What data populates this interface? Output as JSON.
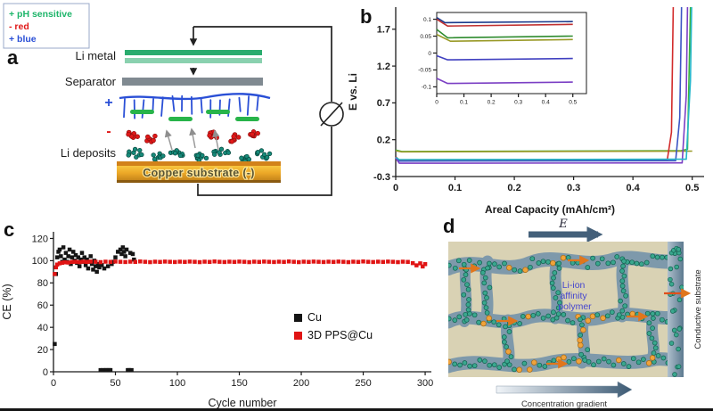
{
  "panels": {
    "a": {
      "label": "a",
      "legend": [
        {
          "text": "+ pH sensitive",
          "color": "#1db56a"
        },
        {
          "text": "- red",
          "color": "#e01818"
        },
        {
          "text": "+ blue",
          "color": "#2a4fd6"
        }
      ],
      "labels": {
        "li_metal": "Li metal",
        "separator": "Separator",
        "plus_sign": "+",
        "minus_sign": "-",
        "li_deposits": "Li deposits",
        "copper": "Copper substrate (-)"
      }
    },
    "b": {
      "label": "b"
    },
    "c": {
      "label": "c"
    },
    "d": {
      "label": "d",
      "e_label": "E",
      "polymer_lines": [
        "Li-ion",
        "affinity",
        "polymer"
      ],
      "substrate": "Conductive substrate",
      "gradient": "Concentration gradient"
    }
  },
  "chart_data": [
    {
      "type": "line",
      "title": "",
      "xlabel": "Areal Capacity (mAh/cm²)",
      "ylabel": "E vs. Li",
      "xlim": [
        0,
        0.52
      ],
      "ylim": [
        -0.3,
        2.0
      ],
      "xticks": [
        0,
        0.1,
        0.2,
        0.3,
        0.4,
        0.5
      ],
      "yticks": [
        -0.3,
        0.2,
        0.7,
        1.2,
        1.7
      ],
      "frame": "lb",
      "series": [
        {
          "name": "green",
          "color": "#3cb53c",
          "points": [
            [
              0,
              0.06
            ],
            [
              0.01,
              0.04
            ],
            [
              0.48,
              0.05
            ],
            [
              0.492,
              0.07
            ],
            [
              0.497,
              2.0
            ]
          ]
        },
        {
          "name": "olive",
          "color": "#9a9a28",
          "points": [
            [
              0,
              0.05
            ],
            [
              0.01,
              0.035
            ],
            [
              0.5,
              0.045
            ]
          ]
        },
        {
          "name": "red",
          "color": "#d22b2b",
          "points": [
            [
              0,
              -0.03
            ],
            [
              0.006,
              -0.08
            ],
            [
              0.458,
              -0.075
            ],
            [
              0.465,
              0.3
            ],
            [
              0.468,
              2.0
            ]
          ]
        },
        {
          "name": "blue",
          "color": "#3b54c4",
          "points": [
            [
              0,
              -0.04
            ],
            [
              0.006,
              -0.09
            ],
            [
              0.472,
              -0.085
            ],
            [
              0.479,
              0.5
            ],
            [
              0.482,
              2.0
            ]
          ]
        },
        {
          "name": "purple",
          "color": "#7b3fc4",
          "points": [
            [
              0,
              -0.05
            ],
            [
              0.006,
              -0.12
            ],
            [
              0.483,
              -0.115
            ],
            [
              0.49,
              0.8
            ],
            [
              0.492,
              2.0
            ]
          ]
        },
        {
          "name": "cyan",
          "color": "#25b7c8",
          "points": [
            [
              0,
              -0.04
            ],
            [
              0.006,
              -0.07
            ],
            [
              0.49,
              -0.065
            ],
            [
              0.497,
              1.0
            ],
            [
              0.499,
              2.0
            ]
          ]
        }
      ]
    },
    {
      "type": "line",
      "title": "",
      "xlabel": "",
      "ylabel": "",
      "xlim": [
        0,
        0.55
      ],
      "ylim": [
        -0.12,
        0.12
      ],
      "xticks": [
        0,
        0.1,
        0.2,
        0.3,
        0.4,
        0.5
      ],
      "yticks": [
        -0.1,
        -0.05,
        0,
        0.05,
        0.1
      ],
      "frame": "box",
      "series": [
        {
          "color": "#1a3a8c",
          "points": [
            [
              0,
              0.105
            ],
            [
              0.03,
              0.09
            ],
            [
              0.5,
              0.093
            ]
          ]
        },
        {
          "color": "#c03030",
          "points": [
            [
              0,
              0.1
            ],
            [
              0.04,
              0.08
            ],
            [
              0.5,
              0.085
            ]
          ]
        },
        {
          "color": "#2e8b2e",
          "points": [
            [
              0,
              0.07
            ],
            [
              0.04,
              0.045
            ],
            [
              0.5,
              0.05
            ]
          ]
        },
        {
          "color": "#9a9a28",
          "points": [
            [
              0,
              0.055
            ],
            [
              0.05,
              0.035
            ],
            [
              0.5,
              0.04
            ]
          ]
        },
        {
          "color": "#4040c0",
          "points": [
            [
              0,
              -0.008
            ],
            [
              0.04,
              -0.02
            ],
            [
              0.5,
              -0.016
            ]
          ]
        },
        {
          "color": "#7b3fc4",
          "points": [
            [
              0,
              -0.075
            ],
            [
              0.04,
              -0.09
            ],
            [
              0.5,
              -0.086
            ]
          ]
        }
      ]
    },
    {
      "type": "scatter",
      "title": "",
      "xlabel": "Cycle number",
      "ylabel": "CE (%)",
      "xlim": [
        0,
        305
      ],
      "ylim": [
        0,
        126
      ],
      "xticks": [
        0,
        50,
        100,
        150,
        200,
        250,
        300
      ],
      "yticks": [
        0,
        20,
        40,
        60,
        80,
        100,
        120
      ],
      "frame": "lb",
      "marker_size": 4.5,
      "legend": [
        {
          "label": "Cu",
          "color": "#151515"
        },
        {
          "label": "3D PPS@Cu",
          "color": "#e01414"
        }
      ],
      "series": [
        {
          "name": "Cu",
          "color": "#151515",
          "points": [
            [
              1,
              25
            ],
            [
              2,
              88
            ],
            [
              3,
              103
            ],
            [
              4,
              108
            ],
            [
              5,
              110
            ],
            [
              6,
              104
            ],
            [
              7,
              99
            ],
            [
              8,
              112
            ],
            [
              9,
              101
            ],
            [
              10,
              107
            ],
            [
              11,
              99
            ],
            [
              12,
              104
            ],
            [
              13,
              110
            ],
            [
              14,
              97
            ],
            [
              15,
              103
            ],
            [
              16,
              108
            ],
            [
              17,
              100
            ],
            [
              18,
              105
            ],
            [
              19,
              98
            ],
            [
              20,
              103
            ],
            [
              21,
              95
            ],
            [
              22,
              101
            ],
            [
              23,
              107
            ],
            [
              24,
              99
            ],
            [
              25,
              103
            ],
            [
              26,
              96
            ],
            [
              27,
              101
            ],
            [
              28,
              93
            ],
            [
              29,
              99
            ],
            [
              30,
              104
            ],
            [
              31,
              97
            ],
            [
              32,
              92
            ],
            [
              33,
              100
            ],
            [
              34,
              95
            ],
            [
              35,
              90
            ],
            [
              36,
              97
            ],
            [
              37,
              94
            ],
            [
              38,
              1.5
            ],
            [
              39,
              96
            ],
            [
              40,
              1.5
            ],
            [
              41,
              93
            ],
            [
              42,
              1.5
            ],
            [
              43,
              1.5
            ],
            [
              44,
              95
            ],
            [
              45,
              1.5
            ],
            [
              46,
              1.5
            ],
            [
              47,
              97
            ],
            [
              48,
              99
            ],
            [
              50,
              103
            ],
            [
              52,
              108
            ],
            [
              54,
              110
            ],
            [
              55,
              106
            ],
            [
              56,
              112
            ],
            [
              57,
              108
            ],
            [
              58,
              104
            ],
            [
              59,
              110
            ],
            [
              60,
              1.5
            ],
            [
              61,
              1.5
            ],
            [
              62,
              107
            ],
            [
              63,
              1.5
            ],
            [
              64,
              106
            ],
            [
              65,
              101
            ]
          ]
        },
        {
          "name": "3D PPS@Cu",
          "color": "#e01414",
          "points": [
            [
              1,
              88
            ],
            [
              2,
              94
            ],
            [
              3,
              96.5
            ],
            [
              5,
              97.6
            ],
            [
              7,
              98.1
            ],
            [
              9,
              98.5
            ],
            [
              12,
              98.3
            ],
            [
              15,
              98.9
            ],
            [
              18,
              99.0
            ],
            [
              21,
              98.7
            ],
            [
              24,
              99.1
            ],
            [
              27,
              98.9
            ],
            [
              30,
              99.2
            ],
            [
              34,
              99.0
            ],
            [
              38,
              98.7
            ],
            [
              42,
              99.1
            ],
            [
              46,
              98.9
            ],
            [
              50,
              99.2
            ],
            [
              54,
              99.0
            ],
            [
              58,
              98.8
            ],
            [
              62,
              99.1
            ],
            [
              66,
              98.9
            ],
            [
              70,
              99.3
            ],
            [
              74,
              99.0
            ],
            [
              78,
              98.7
            ],
            [
              82,
              99.1
            ],
            [
              86,
              98.9
            ],
            [
              90,
              99.2
            ],
            [
              94,
              99.0
            ],
            [
              98,
              98.8
            ],
            [
              102,
              99.1
            ],
            [
              106,
              98.9
            ],
            [
              110,
              99.2
            ],
            [
              114,
              99.0
            ],
            [
              118,
              98.7
            ],
            [
              122,
              99.1
            ],
            [
              126,
              98.9
            ],
            [
              130,
              99.3
            ],
            [
              134,
              99.0
            ],
            [
              138,
              98.8
            ],
            [
              142,
              99.1
            ],
            [
              146,
              98.9
            ],
            [
              150,
              99.2
            ],
            [
              154,
              99.0
            ],
            [
              158,
              98.7
            ],
            [
              162,
              99.1
            ],
            [
              166,
              98.9
            ],
            [
              170,
              99.2
            ],
            [
              174,
              99.0
            ],
            [
              178,
              98.8
            ],
            [
              182,
              99.1
            ],
            [
              186,
              98.9
            ],
            [
              190,
              99.3
            ],
            [
              194,
              99.0
            ],
            [
              198,
              98.7
            ],
            [
              202,
              99.1
            ],
            [
              206,
              98.9
            ],
            [
              210,
              99.2
            ],
            [
              214,
              99.0
            ],
            [
              218,
              98.8
            ],
            [
              222,
              99.1
            ],
            [
              226,
              98.9
            ],
            [
              230,
              99.2
            ],
            [
              234,
              99.0
            ],
            [
              238,
              98.7
            ],
            [
              242,
              99.1
            ],
            [
              246,
              98.9
            ],
            [
              250,
              99.3
            ],
            [
              254,
              99.0
            ],
            [
              258,
              98.8
            ],
            [
              262,
              99.1
            ],
            [
              266,
              98.9
            ],
            [
              270,
              99.2
            ],
            [
              274,
              99.0
            ],
            [
              278,
              98.7
            ],
            [
              282,
              99.1
            ],
            [
              286,
              98.9
            ],
            [
              290,
              97.8
            ],
            [
              293,
              95.8
            ],
            [
              296,
              97.6
            ],
            [
              298,
              94.8
            ],
            [
              300,
              96.9
            ]
          ]
        }
      ]
    }
  ]
}
